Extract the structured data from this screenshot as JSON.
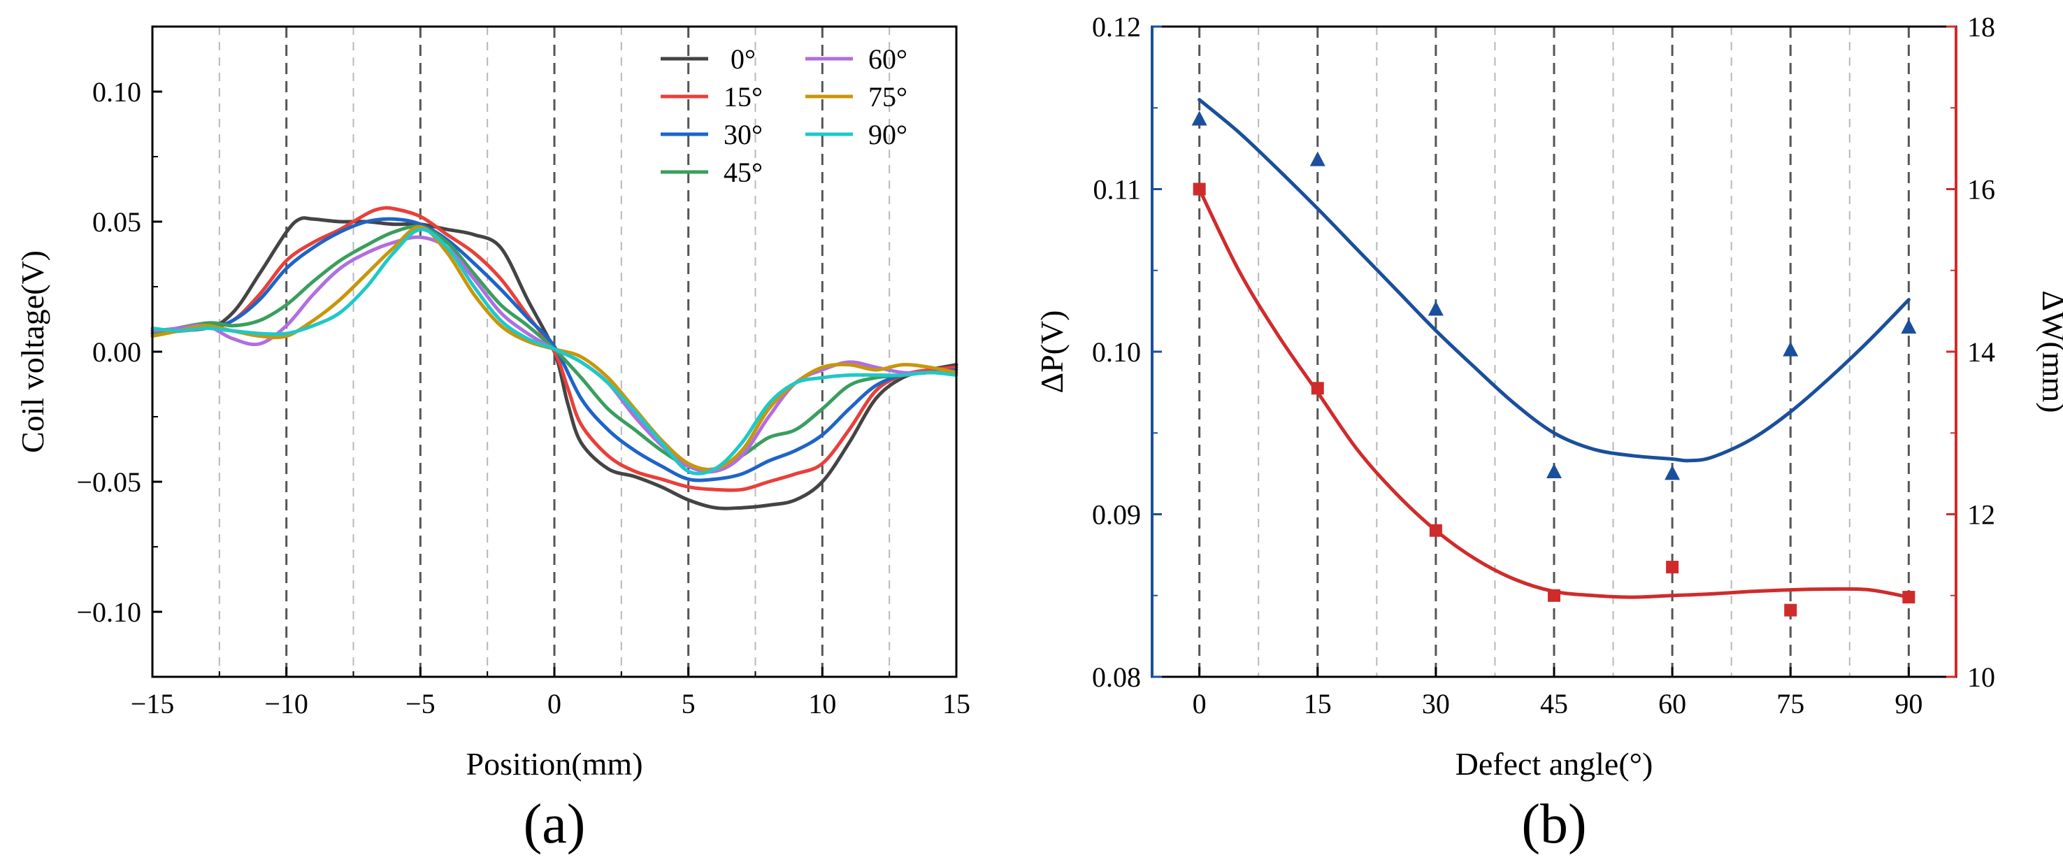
{
  "chart_data": [
    {
      "type": "line",
      "panel_label": "(a)",
      "xlabel": "Position(mm)",
      "ylabel": "Coil voltage(V)",
      "xlim": [
        -15,
        15
      ],
      "ylim": [
        -0.125,
        0.125
      ],
      "xticks": [
        -15,
        -10,
        -5,
        0,
        5,
        10,
        15
      ],
      "xtick_labels": [
        "−15",
        "−10",
        "−5",
        "0",
        "5",
        "10",
        "15"
      ],
      "yticks": [
        -0.1,
        -0.05,
        0,
        0.05,
        0.1
      ],
      "ytick_labels": [
        "−0.10",
        "−0.05",
        "0.00",
        "0.05",
        "0.10"
      ],
      "grid": "vertical dashed",
      "legend_position": "top-right",
      "series": [
        {
          "name": "0°",
          "color": "#444444",
          "x": [
            -15,
            -13,
            -12,
            -11,
            -10,
            -9.5,
            -9,
            -8,
            -7,
            -6,
            -5,
            -4,
            -3,
            -2,
            -1,
            0,
            0.5,
            1,
            2,
            3,
            4,
            5,
            6,
            7,
            8,
            9,
            10,
            11,
            12,
            13,
            14,
            15
          ],
          "y": [
            0.008,
            0.009,
            0.015,
            0.03,
            0.046,
            0.051,
            0.051,
            0.05,
            0.05,
            0.049,
            0.049,
            0.047,
            0.045,
            0.04,
            0.02,
            0.0,
            -0.02,
            -0.035,
            -0.045,
            -0.048,
            -0.052,
            -0.057,
            -0.06,
            -0.06,
            -0.059,
            -0.057,
            -0.05,
            -0.035,
            -0.018,
            -0.01,
            -0.007,
            -0.005
          ]
        },
        {
          "name": "15°",
          "color": "#e8403a",
          "x": [
            -15,
            -13,
            -12,
            -11,
            -10,
            -9,
            -8,
            -7,
            -6.5,
            -6,
            -5,
            -4,
            -3,
            -2,
            -1,
            0,
            0.5,
            1,
            2,
            3,
            4,
            5,
            6,
            7,
            8,
            9,
            10,
            11,
            12,
            13,
            14,
            15
          ],
          "y": [
            0.007,
            0.009,
            0.012,
            0.022,
            0.035,
            0.042,
            0.047,
            0.053,
            0.055,
            0.055,
            0.052,
            0.045,
            0.038,
            0.028,
            0.014,
            0.0,
            -0.014,
            -0.028,
            -0.04,
            -0.046,
            -0.049,
            -0.052,
            -0.053,
            -0.053,
            -0.05,
            -0.047,
            -0.043,
            -0.03,
            -0.015,
            -0.009,
            -0.007,
            -0.006
          ]
        },
        {
          "name": "30°",
          "color": "#1e64c8",
          "x": [
            -15,
            -13,
            -12,
            -11,
            -10,
            -9,
            -8,
            -7,
            -6,
            -5,
            -4,
            -3,
            -2,
            -1,
            0,
            1,
            2,
            3,
            4,
            5,
            6,
            7,
            8,
            9,
            10,
            11,
            12,
            13,
            14,
            15
          ],
          "y": [
            0.008,
            0.009,
            0.012,
            0.02,
            0.032,
            0.04,
            0.046,
            0.05,
            0.051,
            0.049,
            0.043,
            0.034,
            0.024,
            0.013,
            0.002,
            -0.018,
            -0.03,
            -0.038,
            -0.044,
            -0.049,
            -0.049,
            -0.047,
            -0.042,
            -0.038,
            -0.032,
            -0.022,
            -0.013,
            -0.009,
            -0.008,
            -0.007
          ]
        },
        {
          "name": "45°",
          "color": "#3a9e5e",
          "x": [
            -15,
            -13,
            -12,
            -11,
            -10,
            -9,
            -8,
            -7,
            -6,
            -5,
            -4,
            -3,
            -2,
            -1,
            0,
            1,
            2,
            3,
            4,
            5,
            6,
            7,
            8,
            9,
            10,
            11,
            12,
            13,
            14,
            15
          ],
          "y": [
            0.007,
            0.011,
            0.01,
            0.012,
            0.018,
            0.027,
            0.035,
            0.041,
            0.046,
            0.048,
            0.042,
            0.03,
            0.018,
            0.01,
            0.001,
            -0.01,
            -0.022,
            -0.03,
            -0.038,
            -0.044,
            -0.045,
            -0.04,
            -0.033,
            -0.03,
            -0.022,
            -0.013,
            -0.01,
            -0.009,
            -0.008,
            -0.008
          ]
        },
        {
          "name": "60°",
          "color": "#b06ee0",
          "x": [
            -15,
            -14,
            -13,
            -12,
            -11,
            -10,
            -9,
            -8,
            -7,
            -6,
            -5,
            -4,
            -3,
            -2,
            -1,
            0,
            1,
            2,
            3,
            4,
            5,
            6,
            7,
            8,
            9,
            10,
            11,
            12,
            13,
            14,
            15
          ],
          "y": [
            0.008,
            0.009,
            0.01,
            0.005,
            0.003,
            0.01,
            0.022,
            0.032,
            0.038,
            0.042,
            0.044,
            0.04,
            0.028,
            0.015,
            0.007,
            0.001,
            -0.004,
            -0.012,
            -0.025,
            -0.036,
            -0.044,
            -0.046,
            -0.04,
            -0.025,
            -0.012,
            -0.007,
            -0.004,
            -0.006,
            -0.008,
            -0.008,
            -0.008
          ]
        },
        {
          "name": "75°",
          "color": "#c8960a",
          "x": [
            -15,
            -14,
            -13,
            -12,
            -11,
            -10,
            -9,
            -8,
            -7,
            -6,
            -5,
            -4,
            -3,
            -2,
            -1,
            0,
            1,
            2,
            3,
            4,
            5,
            6,
            7,
            8,
            9,
            10,
            11,
            12,
            13,
            14,
            15
          ],
          "y": [
            0.006,
            0.008,
            0.01,
            0.008,
            0.006,
            0.006,
            0.012,
            0.02,
            0.03,
            0.04,
            0.048,
            0.038,
            0.022,
            0.01,
            0.004,
            0.001,
            -0.002,
            -0.01,
            -0.022,
            -0.034,
            -0.043,
            -0.045,
            -0.038,
            -0.022,
            -0.012,
            -0.006,
            -0.005,
            -0.007,
            -0.005,
            -0.006,
            -0.008
          ]
        },
        {
          "name": "90°",
          "color": "#1ec8c8",
          "x": [
            -15,
            -14,
            -13,
            -12,
            -11,
            -10,
            -9,
            -8,
            -7,
            -6,
            -5,
            -4,
            -3,
            -2,
            -1,
            0,
            1,
            2,
            3,
            4,
            5,
            6,
            7,
            8,
            9,
            10,
            11,
            12,
            13,
            14,
            15
          ],
          "y": [
            0.009,
            0.008,
            0.009,
            0.008,
            0.007,
            0.007,
            0.01,
            0.015,
            0.025,
            0.038,
            0.047,
            0.04,
            0.025,
            0.012,
            0.005,
            0.001,
            -0.004,
            -0.012,
            -0.023,
            -0.035,
            -0.046,
            -0.045,
            -0.035,
            -0.02,
            -0.012,
            -0.01,
            -0.009,
            -0.009,
            -0.009,
            -0.008,
            -0.009
          ]
        }
      ]
    },
    {
      "type": "scatter",
      "panel_label": "(b)",
      "xlabel": "Defect angle(°)",
      "ylabel_left": "ΔP(V)",
      "ylabel_right": "ΔW(mm)",
      "xlim": [
        -6,
        96
      ],
      "ylim_left": [
        0.08,
        0.12
      ],
      "ylim_right": [
        10,
        18
      ],
      "xticks": [
        0,
        15,
        30,
        45,
        60,
        75,
        90
      ],
      "xtick_labels": [
        "0",
        "15",
        "30",
        "45",
        "60",
        "75",
        "90"
      ],
      "yticks_left": [
        0.08,
        0.09,
        0.1,
        0.11,
        0.12
      ],
      "ytick_labels_left": [
        "0.08",
        "0.09",
        "0.10",
        "0.11",
        "0.12"
      ],
      "yticks_right": [
        10,
        12,
        14,
        16,
        18
      ],
      "ytick_labels_right": [
        "10",
        "12",
        "14",
        "16",
        "18"
      ],
      "grid": "vertical dashed",
      "series": [
        {
          "name": "ΔP",
          "axis": "left",
          "marker": "triangle",
          "color": "#1a4f9c",
          "x": [
            0,
            15,
            30,
            45,
            60,
            75,
            90
          ],
          "y": [
            0.1143,
            0.1118,
            0.1026,
            0.0926,
            0.0925,
            0.1001,
            0.1015
          ],
          "fit": {
            "x": [
              0,
              5,
              10,
              15,
              20,
              25,
              30,
              35,
              40,
              45,
              50,
              55,
              60,
              62,
              65,
              70,
              75,
              80,
              85,
              90
            ],
            "y": [
              0.1155,
              0.1135,
              0.1112,
              0.1088,
              0.1063,
              0.1038,
              0.1013,
              0.099,
              0.0968,
              0.095,
              0.094,
              0.0936,
              0.0934,
              0.0933,
              0.0935,
              0.0946,
              0.0963,
              0.0984,
              0.1007,
              0.1032
            ]
          }
        },
        {
          "name": "ΔW",
          "axis": "right",
          "marker": "square",
          "color": "#d02b2b",
          "x": [
            0,
            15,
            30,
            45,
            60,
            75,
            90
          ],
          "y": [
            16.0,
            13.55,
            11.8,
            11.0,
            11.35,
            10.82,
            10.98
          ],
          "fit": {
            "x": [
              0,
              5,
              10,
              15,
              20,
              25,
              30,
              35,
              40,
              45,
              50,
              55,
              60,
              65,
              70,
              75,
              80,
              85,
              90
            ],
            "y": [
              16.0,
              15.0,
              14.2,
              13.5,
              12.8,
              12.25,
              11.8,
              11.45,
              11.2,
              11.05,
              11.0,
              10.98,
              11.0,
              11.02,
              11.05,
              11.07,
              11.08,
              11.07,
              10.98
            ]
          }
        }
      ]
    }
  ]
}
